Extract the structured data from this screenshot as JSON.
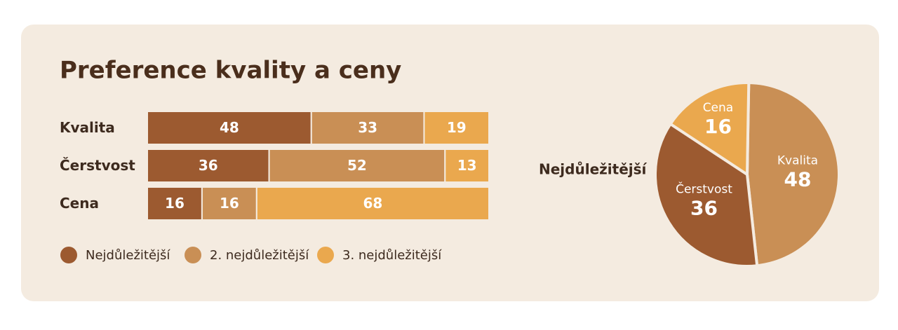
{
  "chart_data": [
    {
      "type": "bar",
      "title": "Preference kvality a ceny",
      "categories": [
        "Kvalita",
        "Čerstvost",
        "Cena"
      ],
      "series": [
        {
          "name": "Nejdůležitější",
          "color": "#9c5a30",
          "values": [
            48,
            36,
            16
          ]
        },
        {
          "name": "2. nejdůležitější",
          "color": "#c98f55",
          "values": [
            33,
            52,
            16
          ]
        },
        {
          "name": "3. nejdůležitější",
          "color": "#eaa84e",
          "values": [
            19,
            13,
            68
          ]
        }
      ]
    },
    {
      "type": "pie",
      "title": "Nejdůležitější",
      "categories": [
        "Kvalita",
        "Čerstvost",
        "Cena"
      ],
      "values": [
        48,
        36,
        16
      ],
      "colors": [
        "#c98f55",
        "#9c5a30",
        "#eaa84e"
      ]
    }
  ]
}
